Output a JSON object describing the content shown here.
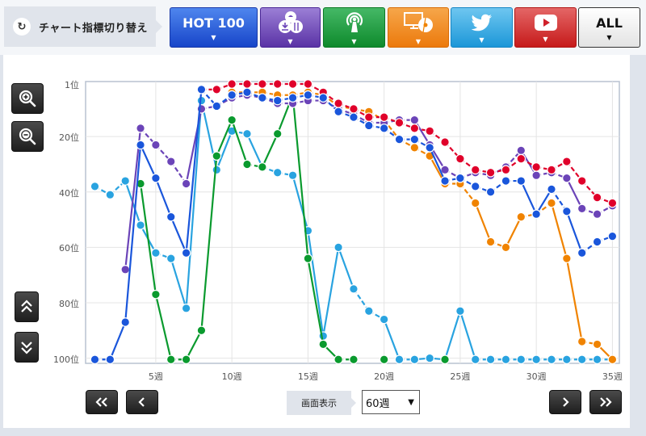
{
  "header": {
    "switch_label": "チャート指標切り替え",
    "switch_icon": "refresh-icon",
    "tabs": [
      {
        "id": "hot100",
        "label": "HOT 100",
        "icon": null,
        "color": "#1e4fd8",
        "dropdown": "▼"
      },
      {
        "id": "download",
        "label": "",
        "icon": "download-stream-icon",
        "color": "#6b44b8",
        "dropdown": "▼"
      },
      {
        "id": "radio",
        "label": "",
        "icon": "radio-antenna-icon",
        "color": "#0a9a2e",
        "dropdown": "▼"
      },
      {
        "id": "pc",
        "label": "",
        "icon": "pc-cd-icon",
        "color": "#f08300",
        "dropdown": "▼"
      },
      {
        "id": "twitter",
        "label": "",
        "icon": "twitter-bird-icon",
        "color": "#29a3e0",
        "dropdown": "▼"
      },
      {
        "id": "youtube",
        "label": "",
        "icon": "youtube-play-icon",
        "color": "#d0202a",
        "dropdown": "▼"
      },
      {
        "id": "all",
        "label": "ALL",
        "icon": null,
        "color": "#ffffff",
        "dropdown": "▼"
      }
    ]
  },
  "side_controls": {
    "zoom_in": "zoom-in-icon",
    "zoom_out": "zoom-out-icon",
    "scroll_up": "double-chevron-up-icon",
    "scroll_down": "double-chevron-down-icon"
  },
  "footer": {
    "first_label": "«",
    "prev_label": "‹",
    "next_label": "›",
    "last_label": "»",
    "display_label": "画面表示",
    "display_value": "60週",
    "display_arrow": "▼"
  },
  "chart_data": {
    "type": "line",
    "title": "",
    "xlabel": "",
    "ylabel": "",
    "y_inverted": true,
    "ylim": [
      1,
      100
    ],
    "xlim": [
      1,
      35
    ],
    "y_ticks": [
      "1位",
      "20位",
      "40位",
      "60位",
      "80位",
      "100位"
    ],
    "y_tick_values": [
      1,
      20,
      40,
      60,
      80,
      100
    ],
    "x_ticks": [
      "5週",
      "10週",
      "15週",
      "20週",
      "25週",
      "30週",
      "35週"
    ],
    "x_tick_values": [
      5,
      10,
      15,
      20,
      25,
      30,
      35
    ],
    "grid": true,
    "legend": null,
    "note": "Value 101 means out of chart (plotted at bottom baseline)",
    "x": [
      1,
      2,
      3,
      4,
      5,
      6,
      7,
      8,
      9,
      10,
      11,
      12,
      13,
      14,
      15,
      16,
      17,
      18,
      19,
      20,
      21,
      22,
      23,
      24,
      25,
      26,
      27,
      28,
      29,
      30,
      31,
      32,
      33,
      34,
      35
    ],
    "series": [
      {
        "name": "Twitter",
        "color": "#29a3e0",
        "values": [
          38,
          41,
          36,
          52,
          62,
          64,
          82,
          7,
          32,
          18,
          19,
          31,
          33,
          34,
          54,
          92,
          60,
          75,
          83,
          86,
          101,
          101,
          100,
          101,
          83,
          101,
          101,
          101,
          101,
          101,
          101,
          101,
          101,
          101,
          101
        ]
      },
      {
        "name": "Radio",
        "color": "#0a9a2e",
        "values": [
          null,
          null,
          null,
          37,
          77,
          101,
          101,
          90,
          27,
          14,
          30,
          31,
          19,
          5,
          64,
          95,
          101,
          101,
          null,
          101,
          null,
          null,
          null,
          101,
          null,
          null,
          null,
          null,
          null,
          null,
          null,
          null,
          null,
          null,
          null
        ]
      },
      {
        "name": "PC/Lookup",
        "color": "#f08300",
        "values": [
          null,
          null,
          null,
          null,
          null,
          null,
          null,
          null,
          null,
          4,
          4,
          4,
          5,
          5,
          4,
          5,
          9,
          10,
          11,
          14,
          21,
          24,
          27,
          37,
          37,
          44,
          58,
          60,
          49,
          48,
          44,
          64,
          94,
          95,
          101
        ]
      },
      {
        "name": "Download/Streaming",
        "color": "#6b44b8",
        "values": [
          null,
          null,
          68,
          17,
          23,
          29,
          37,
          10,
          9,
          6,
          5,
          6,
          8,
          8,
          7,
          7,
          10,
          12,
          15,
          15,
          14,
          14,
          23,
          32,
          35,
          33,
          34,
          31,
          25,
          34,
          33,
          35,
          46,
          48,
          45
        ]
      },
      {
        "name": "YouTube",
        "color": "#e0002a",
        "values": [
          null,
          null,
          null,
          null,
          null,
          null,
          null,
          3,
          3,
          1,
          1,
          1,
          1,
          1,
          1,
          4,
          8,
          10,
          13,
          13,
          15,
          17,
          18,
          22,
          28,
          32,
          33,
          32,
          28,
          31,
          32,
          29,
          36,
          42,
          44
        ]
      },
      {
        "name": "HOT 100",
        "color": "#1a56db",
        "values": [
          101,
          101,
          87,
          23,
          35,
          49,
          62,
          3,
          9,
          5,
          4,
          6,
          7,
          6,
          5,
          6,
          11,
          13,
          16,
          17,
          21,
          21,
          24,
          36,
          35,
          38,
          40,
          36,
          36,
          48,
          39,
          47,
          62,
          58,
          56
        ]
      }
    ]
  }
}
